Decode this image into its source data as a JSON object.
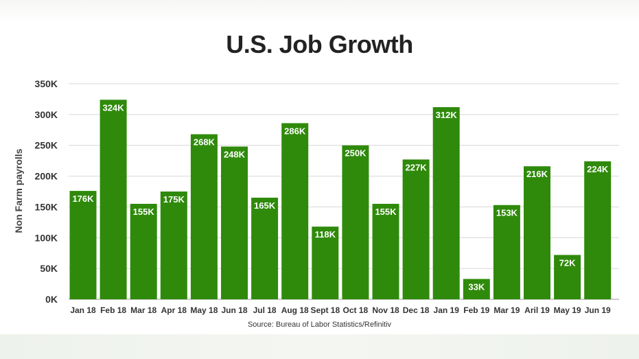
{
  "chart_data": {
    "type": "bar",
    "title": "U.S. Job Growth",
    "ylabel": "Non Farm payrolls",
    "xlabel": "",
    "source": "Source: Bureau of Labor Statistics/Refinitiv",
    "categories": [
      "Jan 18",
      "Feb 18",
      "Mar 18",
      "Apr 18",
      "May 18",
      "Jun 18",
      "Jul 18",
      "Aug 18",
      "Sept 18",
      "Oct 18",
      "Nov 18",
      "Dec 18",
      "Jan 19",
      "Feb 19",
      "Mar 19",
      "Aril 19",
      "May 19",
      "Jun 19"
    ],
    "values": [
      176,
      324,
      155,
      175,
      268,
      248,
      165,
      286,
      118,
      250,
      155,
      227,
      312,
      33,
      153,
      216,
      72,
      224
    ],
    "value_labels": [
      "176K",
      "324K",
      "155K",
      "175K",
      "268K",
      "248K",
      "165K",
      "286K",
      "118K",
      "250K",
      "155K",
      "227K",
      "312K",
      "33K",
      "153K",
      "216K",
      "72K",
      "224K"
    ],
    "yticks": [
      0,
      50,
      100,
      150,
      200,
      250,
      300,
      350
    ],
    "ytick_labels": [
      "0K",
      "50K",
      "100K",
      "150K",
      "200K",
      "250K",
      "300K",
      "350K"
    ],
    "ylim": [
      0,
      350
    ],
    "grid": true,
    "legend": "none",
    "bar_color": "#2f8a0b",
    "grid_color": "#d6d6d6"
  }
}
